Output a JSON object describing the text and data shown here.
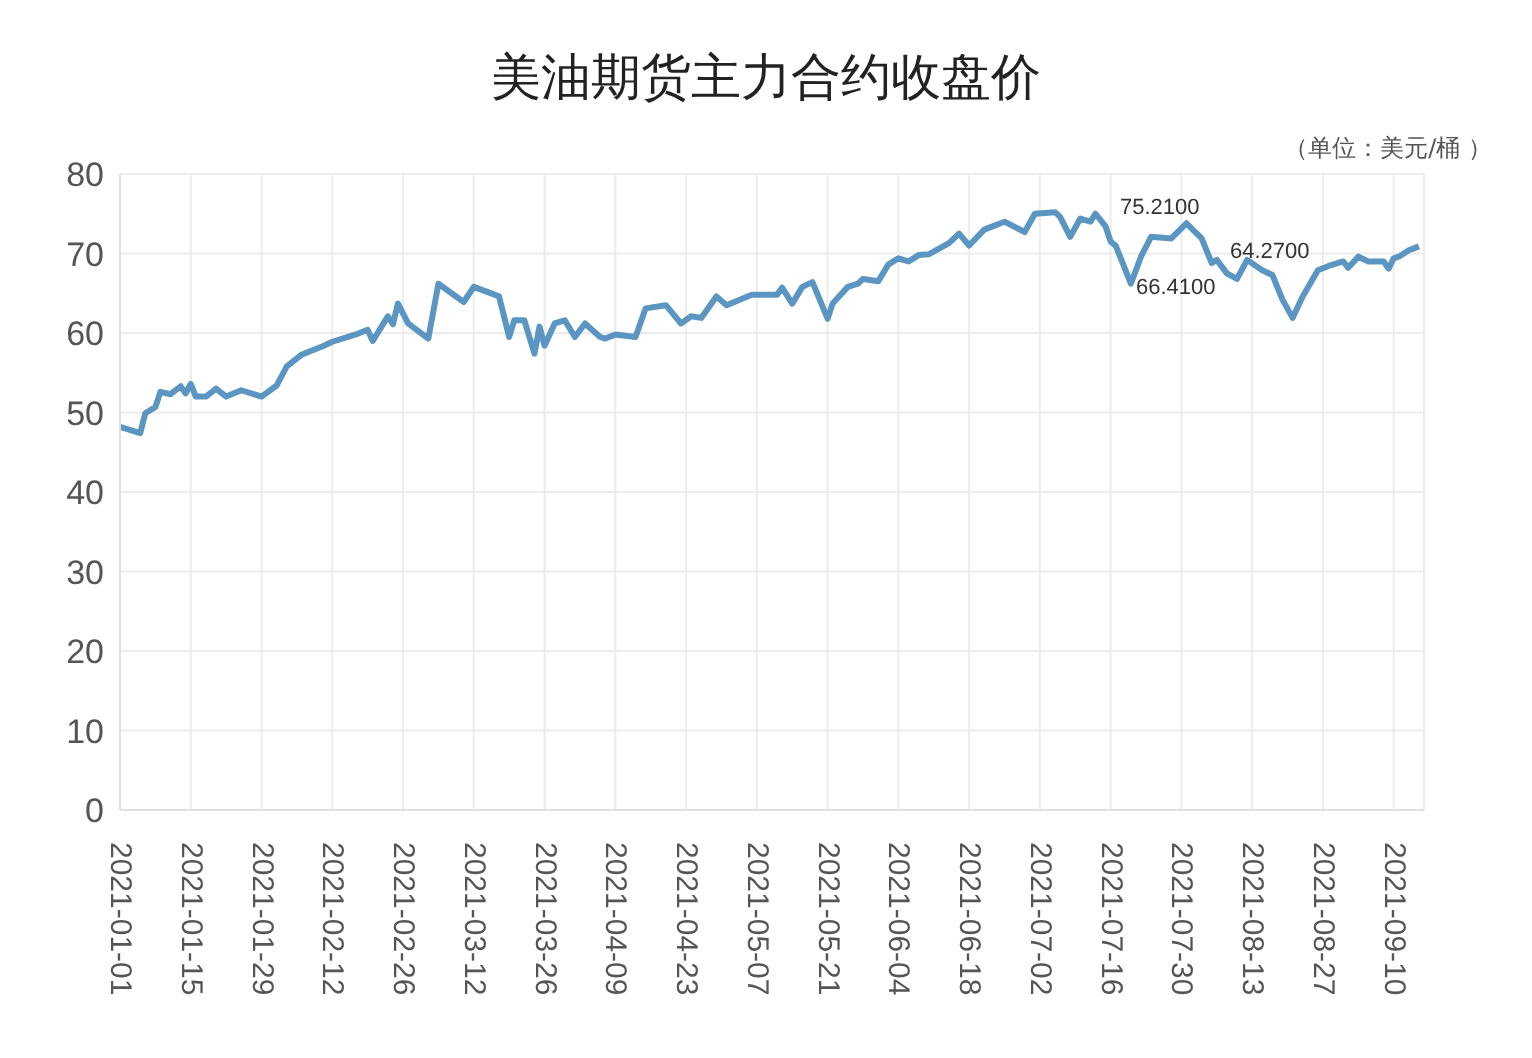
{
  "chart_data": {
    "type": "line",
    "title": "美油期货主力合约收盘价",
    "subtitle": "（单位：美元/桶 ）",
    "x": [
      "2021-01-01",
      "2021-01-05",
      "2021-01-06",
      "2021-01-08",
      "2021-01-09",
      "2021-01-11",
      "2021-01-13",
      "2021-01-14",
      "2021-01-15",
      "2021-01-16",
      "2021-01-18",
      "2021-01-20",
      "2021-01-22",
      "2021-01-25",
      "2021-01-29",
      "2021-02-01",
      "2021-02-03",
      "2021-02-06",
      "2021-02-10",
      "2021-02-12",
      "2021-02-17",
      "2021-02-19",
      "2021-02-20",
      "2021-02-23",
      "2021-02-24",
      "2021-02-25",
      "2021-02-27",
      "2021-03-03",
      "2021-03-05",
      "2021-03-10",
      "2021-03-12",
      "2021-03-17",
      "2021-03-19",
      "2021-03-20",
      "2021-03-22",
      "2021-03-24",
      "2021-03-25",
      "2021-03-26",
      "2021-03-28",
      "2021-03-30",
      "2021-04-01",
      "2021-04-03",
      "2021-04-06",
      "2021-04-07",
      "2021-04-09",
      "2021-04-13",
      "2021-04-15",
      "2021-04-19",
      "2021-04-22",
      "2021-04-24",
      "2021-04-26",
      "2021-04-29",
      "2021-05-01",
      "2021-05-06",
      "2021-05-11",
      "2021-05-12",
      "2021-05-14",
      "2021-05-16",
      "2021-05-18",
      "2021-05-21",
      "2021-05-22",
      "2021-05-25",
      "2021-05-27",
      "2021-05-28",
      "2021-05-31",
      "2021-06-02",
      "2021-06-04",
      "2021-06-06",
      "2021-06-08",
      "2021-06-10",
      "2021-06-14",
      "2021-06-16",
      "2021-06-18",
      "2021-06-21",
      "2021-06-25",
      "2021-06-29",
      "2021-07-01",
      "2021-07-05",
      "2021-07-06",
      "2021-07-08",
      "2021-07-10",
      "2021-07-12",
      "2021-07-13",
      "2021-07-15",
      "2021-07-16",
      "2021-07-17",
      "2021-07-20",
      "2021-07-22",
      "2021-07-24",
      "2021-07-28",
      "2021-07-31",
      "2021-08-03",
      "2021-08-05",
      "2021-08-06",
      "2021-08-08",
      "2021-08-10",
      "2021-08-12",
      "2021-08-15",
      "2021-08-17",
      "2021-08-19",
      "2021-08-21",
      "2021-08-23",
      "2021-08-26",
      "2021-08-28",
      "2021-08-31",
      "2021-09-01",
      "2021-09-03",
      "2021-09-05",
      "2021-09-08",
      "2021-09-09",
      "2021-09-10",
      "2021-09-11",
      "2021-09-13",
      "2021-09-15"
    ],
    "series": [
      {
        "color": "#5b96c2",
        "values": [
          48.2,
          47.4,
          49.9,
          50.7,
          52.6,
          52.3,
          53.3,
          52.4,
          53.6,
          52.0,
          52.0,
          53.0,
          52.0,
          52.8,
          52.0,
          53.4,
          55.8,
          57.3,
          58.3,
          58.9,
          59.9,
          60.4,
          59.0,
          62.1,
          61.1,
          63.7,
          61.2,
          59.3,
          66.2,
          63.9,
          65.8,
          64.6,
          59.5,
          61.6,
          61.6,
          57.4,
          60.8,
          58.4,
          61.2,
          61.6,
          59.5,
          61.2,
          59.5,
          59.3,
          59.8,
          59.5,
          63.1,
          63.5,
          61.2,
          62.1,
          61.9,
          64.6,
          63.5,
          64.8,
          64.8,
          65.7,
          63.7,
          65.8,
          66.4,
          61.8,
          63.7,
          65.8,
          66.2,
          66.8,
          66.5,
          68.6,
          69.4,
          69.0,
          69.8,
          69.9,
          71.3,
          72.5,
          71.0,
          73.0,
          74.0,
          72.7,
          75.0,
          75.2,
          74.6,
          72.1,
          74.4,
          74.0,
          75.0,
          73.4,
          71.5,
          71.0,
          66.2,
          69.6,
          72.1,
          71.9,
          73.8,
          71.9,
          68.8,
          69.2,
          67.5,
          66.8,
          69.2,
          67.9,
          67.3,
          64.2,
          61.9,
          64.6,
          67.9,
          68.4,
          69.0,
          68.2,
          69.6,
          69.0,
          69.0,
          68.1,
          69.4,
          69.6,
          70.4,
          70.9
        ]
      }
    ],
    "xlim": [
      "2021-01-01",
      "2021-09-16"
    ],
    "xticks": [
      "2021-01-01",
      "2021-01-15",
      "2021-01-29",
      "2021-02-12",
      "2021-02-26",
      "2021-03-12",
      "2021-03-26",
      "2021-04-09",
      "2021-04-23",
      "2021-05-07",
      "2021-05-21",
      "2021-06-04",
      "2021-06-18",
      "2021-07-02",
      "2021-07-16",
      "2021-07-30",
      "2021-08-13",
      "2021-08-27",
      "2021-09-10"
    ],
    "ylim": [
      0,
      80
    ],
    "yticks": [
      0,
      10,
      20,
      30,
      40,
      50,
      60,
      70,
      80
    ],
    "annotations": [
      "75.2100",
      "66.4100",
      "64.2700"
    ],
    "grid": true,
    "legend": false,
    "marker": "none",
    "line_style": "solid"
  }
}
